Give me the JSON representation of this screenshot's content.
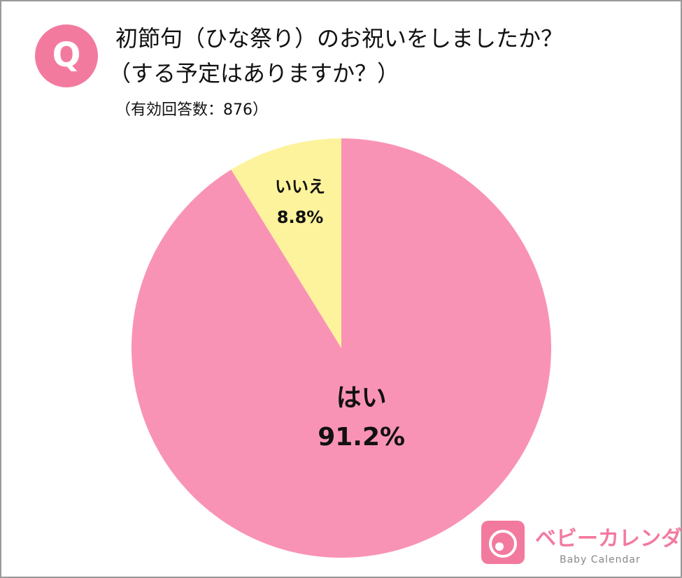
{
  "chart_data": {
    "type": "pie",
    "badge": "Q",
    "title_lines": [
      "初節句（ひな祭り）のお祝いをしましたか？",
      "（する予定はありますか？）"
    ],
    "subtitle": "（有効回答数：876）",
    "categories": [
      "はい",
      "いいえ"
    ],
    "values": [
      91.2,
      8.8
    ],
    "value_labels": [
      "91.2%",
      "8.8%"
    ],
    "colors": [
      "#f993b5",
      "#fdf39c"
    ],
    "brand": "ベビーカレンダー",
    "brand_sub": "Baby Calendar"
  }
}
